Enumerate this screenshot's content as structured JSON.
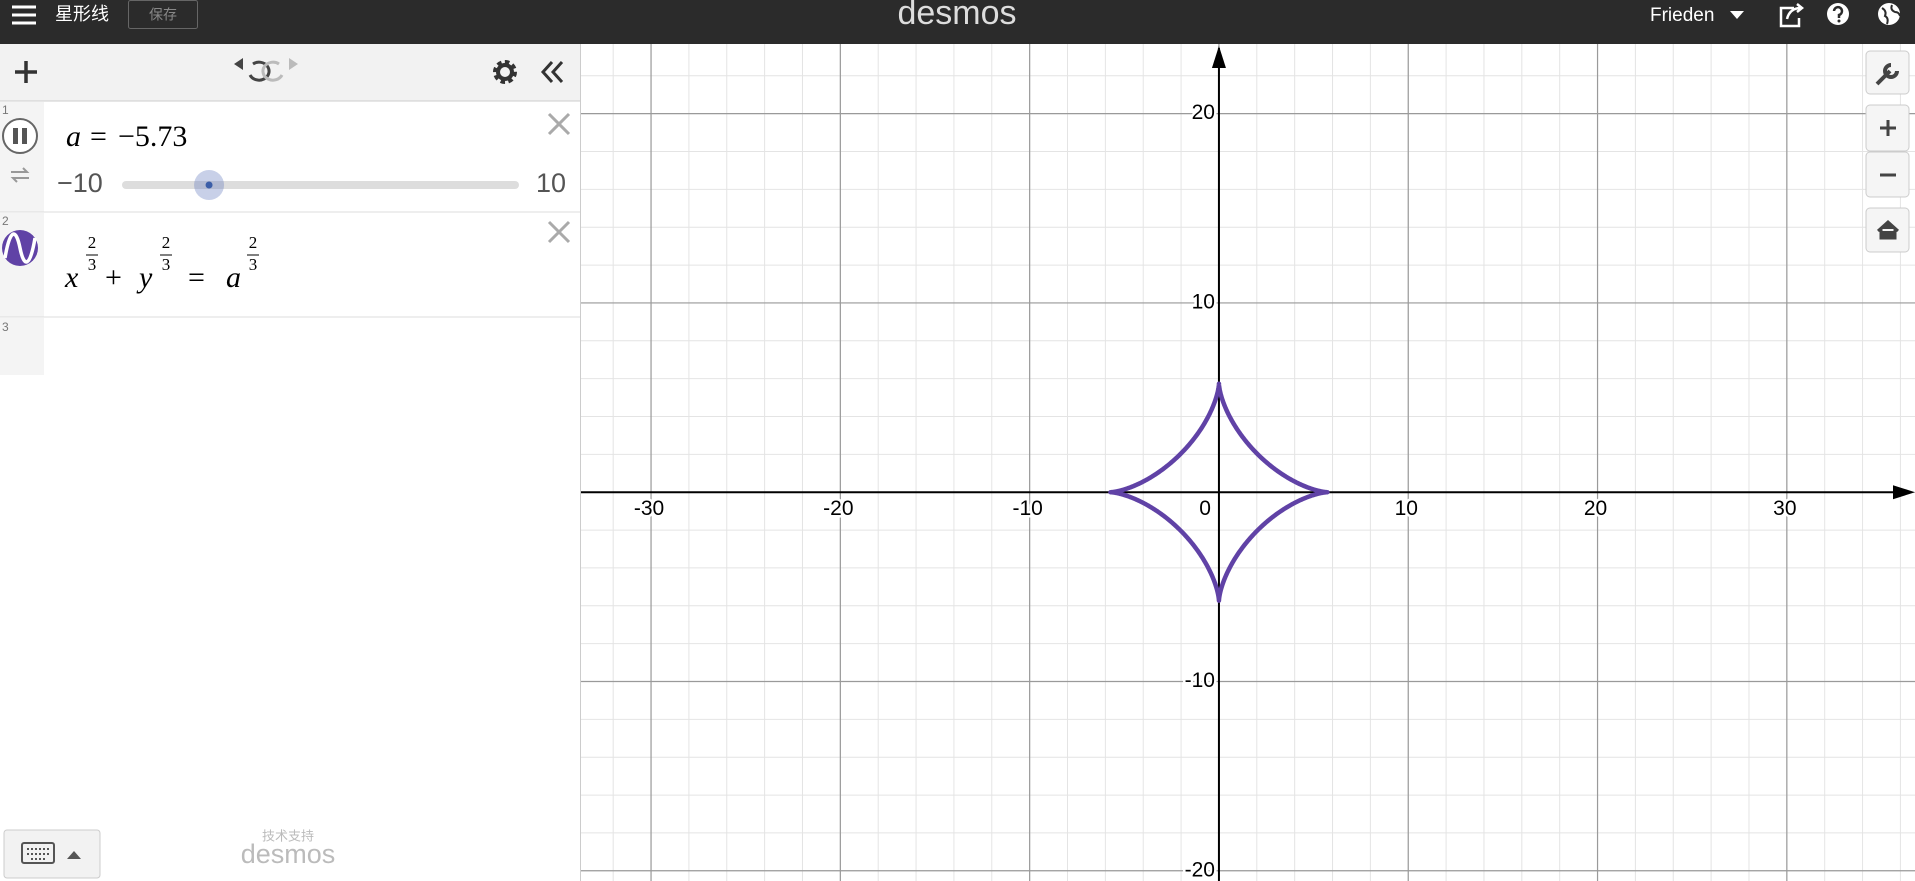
{
  "header": {
    "title": "星形线",
    "save_button": "保存",
    "logo": "desmos",
    "user": "Frieden"
  },
  "expressions": [
    {
      "number": "1",
      "variable": "a",
      "equals": "=",
      "value": -5.73,
      "value_label": "−5.73",
      "slider_min": {
        "value": -10,
        "label": "−10"
      },
      "slider_max": 10
    },
    {
      "number": "2",
      "terms": [
        {
          "base": "x",
          "numerator": "2",
          "denominator": "3"
        },
        {
          "base": "y",
          "numerator": "2",
          "denominator": "3"
        },
        {
          "base": "a",
          "numerator": "2",
          "denominator": "3"
        }
      ],
      "operators": [
        "+",
        "="
      ]
    },
    {
      "number": "3"
    }
  ],
  "footer": {
    "powered_by": "技术支持",
    "logo": "desmos"
  },
  "graph": {
    "xlim": [
      -33.7,
      36.77
    ],
    "ylim": [
      -20.54,
      23.68
    ],
    "xticks": [
      -30,
      -20,
      -10,
      0,
      10,
      20,
      30
    ],
    "yticks": [
      -20,
      -10,
      10,
      20
    ],
    "grid": true,
    "curve_color": "#6042a6"
  }
}
